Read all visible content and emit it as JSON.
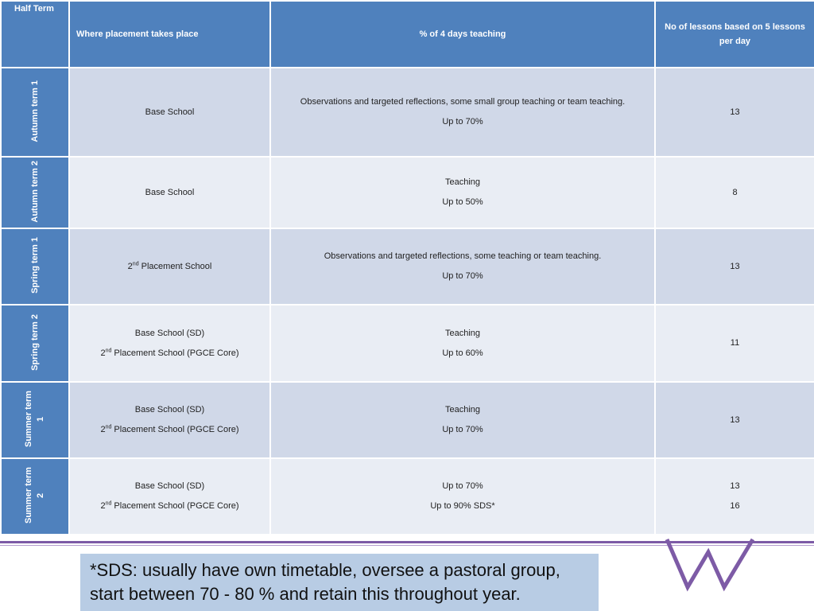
{
  "header": {
    "half_term": "Half Term",
    "where": "Where placement takes place",
    "percent": "% of 4 days teaching",
    "lessons_line1": "No of lessons based on 5 lessons",
    "lessons_line2": "per day"
  },
  "rows": [
    {
      "term": "Autumn term 1",
      "place_line1": "Base School",
      "teaching_line1": "Observations and targeted reflections, some small group teaching or team teaching.",
      "teaching_line2": "Up to 70%",
      "lessons_line1": "13"
    },
    {
      "term": "Autumn term 2",
      "place_line1": "Base School",
      "teaching_line1": "Teaching",
      "teaching_line2": "Up to 50%",
      "lessons_line1": "8"
    },
    {
      "term": "Spring term 1",
      "place_ordinal": "2",
      "place_sup": "nd",
      "place_rest": " Placement School",
      "teaching_line1": "Observations and targeted reflections, some teaching or team teaching.",
      "teaching_line2": "Up to 70%",
      "lessons_line1": "13"
    },
    {
      "term": "Spring term 2",
      "place_line1": "Base School (SD)",
      "place2_ordinal": "2",
      "place2_sup": "nd",
      "place2_rest": " Placement School (PGCE Core)",
      "teaching_line1": "Teaching",
      "teaching_line2": "Up to 60%",
      "lessons_line1": "11"
    },
    {
      "term": "Summer term 1",
      "place_line1": "Base School (SD)",
      "place2_ordinal": "2",
      "place2_sup": "nd",
      "place2_rest": " Placement School (PGCE Core)",
      "teaching_line1": "Teaching",
      "teaching_line2": "Up to 70%",
      "lessons_line1": "13"
    },
    {
      "term": "Summer term 2",
      "place_line1": "Base School (SD)",
      "place2_ordinal": "2",
      "place2_sup": "nd",
      "place2_rest": " Placement School (PGCE Core)",
      "teaching_line1": "Up to 70%",
      "teaching_line2": "Up to 90% SDS*",
      "lessons_line1": "13",
      "lessons_line2": "16"
    }
  ],
  "footnote": {
    "line1": "*SDS: usually have own timetable, oversee a pastoral group,",
    "line2": "start between 70 - 80 % and retain this throughout year."
  },
  "colors": {
    "header_blue": "#4f81bd",
    "row_dark": "#d0d8e8",
    "row_light": "#e9edf4",
    "accent_purple": "#7d5ba6",
    "footnote_bg": "#b8cce4"
  },
  "logo": "purple-w-logo"
}
